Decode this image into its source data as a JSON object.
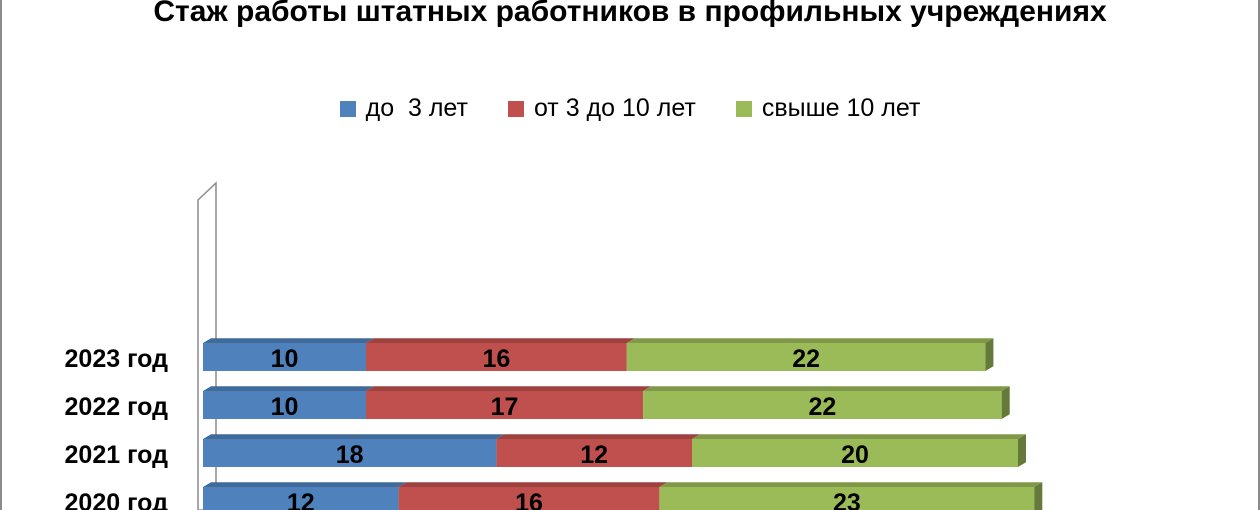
{
  "chart_data": {
    "type": "bar",
    "orientation": "horizontal",
    "stacked": true,
    "title": "Стаж работы штатных работников в профильных учреждениях",
    "categories": [
      "2023 год",
      "2022 год",
      "2021 год",
      "2020 год"
    ],
    "series": [
      {
        "name": "до  3 лет",
        "color": "#4F81BD",
        "values": [
          10,
          10,
          18,
          12
        ]
      },
      {
        "name": "от 3 до 10 лет",
        "color": "#C0504D",
        "values": [
          16,
          17,
          12,
          16
        ]
      },
      {
        "name": "свыше 10 лет",
        "color": "#9BBB59",
        "values": [
          22,
          22,
          20,
          23
        ]
      }
    ],
    "xlim": [
      0,
      51
    ],
    "legend_position": "top",
    "grid": false,
    "data_labels": true
  }
}
